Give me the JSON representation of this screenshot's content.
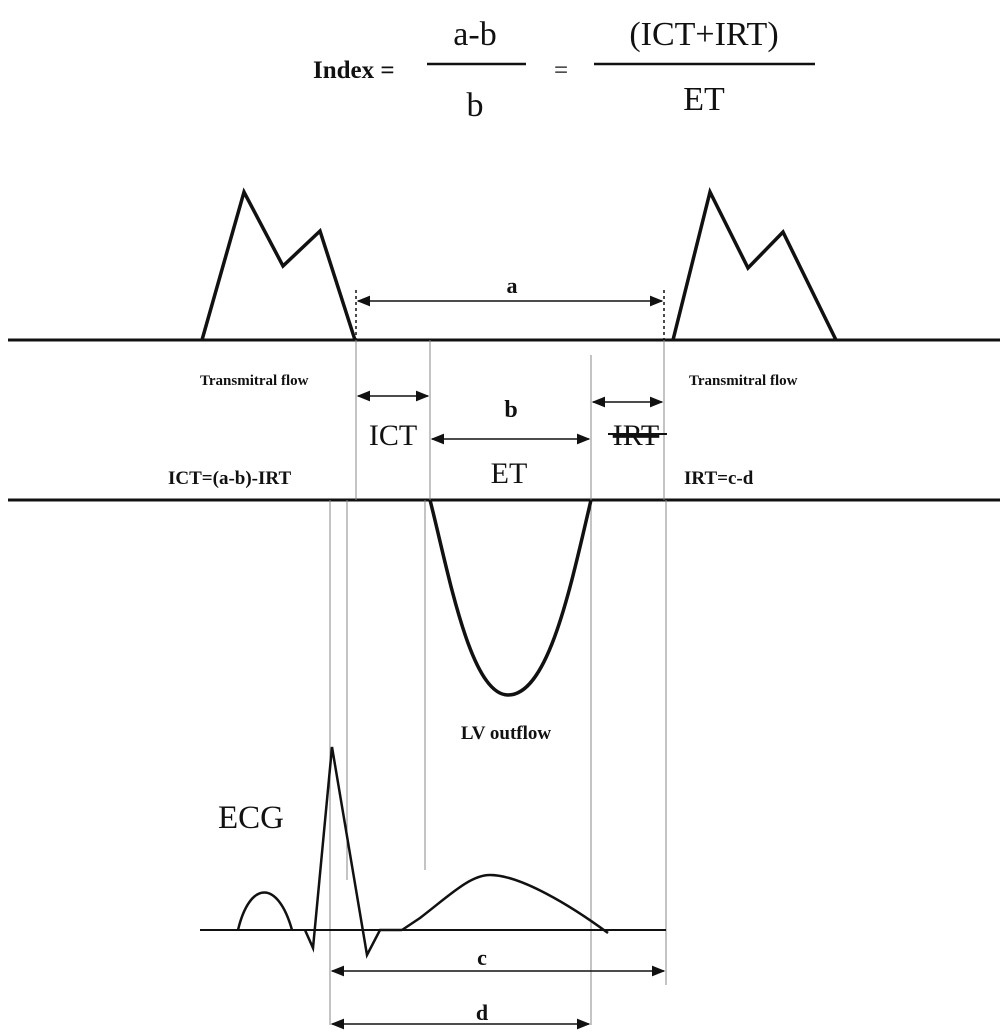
{
  "formula": {
    "lhs": "Index =",
    "frac1_num": "a-b",
    "frac1_den": "b",
    "equals": "=",
    "frac2_num": "(ICT+IRT)",
    "frac2_den": "ET"
  },
  "labels": {
    "a": "a",
    "b": "b",
    "c": "c",
    "d": "d",
    "ict": "ICT",
    "irt": "IRT",
    "et": "ET",
    "transmitral_left": "Transmitral flow",
    "transmitral_right": "Transmitral flow",
    "ict_formula": "ICT=(a-b)-IRT",
    "irt_formula": "IRT=c-d",
    "lv_outflow": "LV outflow",
    "ecg": "ECG"
  },
  "colors": {
    "line": "#111111",
    "guide": "#888888"
  }
}
